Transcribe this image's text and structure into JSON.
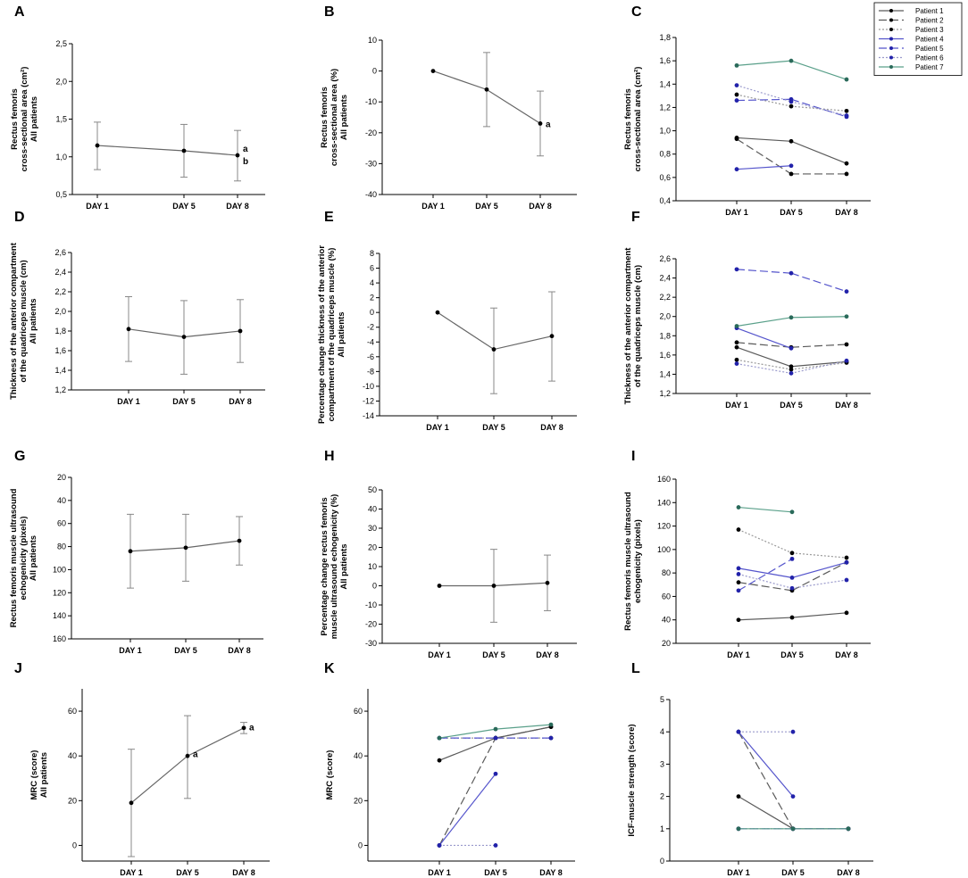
{
  "figure": {
    "categories": [
      "DAY 1",
      "DAY 5",
      "DAY 8"
    ]
  },
  "legend": {
    "entries": [
      {
        "label": "Patient 1",
        "color": "#5a5a5a",
        "dash": "solid",
        "marker": "#000000"
      },
      {
        "label": "Patient 2",
        "color": "#5a5a5a",
        "dash": "longdash",
        "marker": "#000000"
      },
      {
        "label": "Patient 3",
        "color": "#9a9a9a",
        "dash": "dotted",
        "marker": "#000000"
      },
      {
        "label": "Patient 4",
        "color": "#5555cc",
        "dash": "solid",
        "marker": "#2222aa"
      },
      {
        "label": "Patient 5",
        "color": "#5555cc",
        "dash": "longdash",
        "marker": "#2222aa"
      },
      {
        "label": "Patient 6",
        "color": "#9a9acc",
        "dash": "dotted",
        "marker": "#2222aa"
      },
      {
        "label": "Patient 7",
        "color": "#5aa08a",
        "dash": "solid",
        "marker": "#2a6a5a"
      }
    ]
  },
  "chart_data": [
    {
      "id": "A",
      "type": "line",
      "kind": "mean",
      "ylabel": [
        "Rectus femoris",
        "cross-sectional area (cm²)",
        "All patients"
      ],
      "ylim": [
        0.5,
        2.5
      ],
      "ticks": [
        "0,5",
        "1,0",
        "1,5",
        "2,0",
        "2,5"
      ],
      "tick_values": [
        0.5,
        1.0,
        1.5,
        2.0,
        2.5
      ],
      "categories": [
        "DAY 1",
        "DAY 5",
        "DAY 8"
      ],
      "mean": [
        1.15,
        1.08,
        1.02
      ],
      "err_low": [
        0.83,
        0.73,
        0.68
      ],
      "err_high": [
        1.46,
        1.43,
        1.35
      ],
      "annotations": [
        {
          "day": 2,
          "y": 1.02,
          "text": "a",
          "dy": -8
        },
        {
          "day": 2,
          "y": 1.02,
          "text": "b",
          "dy": 6
        }
      ]
    },
    {
      "id": "B",
      "type": "line",
      "kind": "mean",
      "ylabel": [
        "Rectus femoris",
        "cross-sectional area (%)",
        "All patients"
      ],
      "ylim": [
        -40,
        10
      ],
      "ticks": [
        "-40",
        "-30",
        "-20",
        "-10",
        "0",
        "10"
      ],
      "tick_values": [
        -40,
        -30,
        -20,
        -10,
        0,
        10
      ],
      "categories": [
        "DAY 1",
        "DAY 5",
        "DAY 8"
      ],
      "mean": [
        0,
        -6,
        -17
      ],
      "err_low": [
        null,
        -18,
        -27.5
      ],
      "err_high": [
        null,
        6,
        -6.5
      ],
      "annotations": [
        {
          "day": 2,
          "y": -17,
          "text": "a",
          "dy": 0
        }
      ]
    },
    {
      "id": "C",
      "type": "line",
      "kind": "patients",
      "ylabel": [
        "Rectus femoris",
        "cross-sectional area (cm²)"
      ],
      "ylim": [
        0.4,
        1.8
      ],
      "ticks": [
        "0,4",
        "0,6",
        "0,8",
        "1,0",
        "1,2",
        "1,4",
        "1,6",
        "1,8"
      ],
      "tick_values": [
        0.4,
        0.6,
        0.8,
        1.0,
        1.2,
        1.4,
        1.6,
        1.8
      ],
      "categories": [
        "DAY 1",
        "DAY 5",
        "DAY 8"
      ],
      "series": [
        {
          "name": "Patient 1",
          "values": [
            0.94,
            0.91,
            0.72
          ]
        },
        {
          "name": "Patient 2",
          "values": [
            0.93,
            0.63,
            0.63
          ]
        },
        {
          "name": "Patient 3",
          "values": [
            1.31,
            1.21,
            1.17
          ]
        },
        {
          "name": "Patient 4",
          "values": [
            0.67,
            0.7,
            null
          ]
        },
        {
          "name": "Patient 5",
          "values": [
            1.26,
            1.27,
            1.12
          ]
        },
        {
          "name": "Patient 6",
          "values": [
            1.39,
            1.25,
            1.13
          ]
        },
        {
          "name": "Patient 7",
          "values": [
            1.56,
            1.6,
            1.44
          ]
        }
      ]
    },
    {
      "id": "D",
      "type": "line",
      "kind": "mean",
      "ylabel": [
        "Thickness of the anterior compartment",
        "of the quadriceps muscle (cm)",
        "All patients"
      ],
      "ylim": [
        1.2,
        2.6
      ],
      "ticks": [
        "1,2",
        "1,4",
        "1,6",
        "1,8",
        "2,0",
        "2,2",
        "2,4",
        "2,6"
      ],
      "tick_values": [
        1.2,
        1.4,
        1.6,
        1.8,
        2.0,
        2.2,
        2.4,
        2.6
      ],
      "categories": [
        "DAY 1",
        "DAY 5",
        "DAY 8"
      ],
      "mean": [
        1.82,
        1.74,
        1.8
      ],
      "err_low": [
        1.49,
        1.36,
        1.48
      ],
      "err_high": [
        2.15,
        2.11,
        2.12
      ],
      "annotations": []
    },
    {
      "id": "E",
      "type": "line",
      "kind": "mean",
      "ylabel": [
        "Percentage change thickness of the anterior",
        "compartment of the quadriceps muscle (%)",
        "All patients"
      ],
      "ylim": [
        -14,
        8
      ],
      "ticks": [
        "-14",
        "-12",
        "-10",
        "-8",
        "-6",
        "-4",
        "-2",
        "0",
        "2",
        "4",
        "6",
        "8"
      ],
      "tick_values": [
        -14,
        -12,
        -10,
        -8,
        -6,
        -4,
        -2,
        0,
        2,
        4,
        6,
        8
      ],
      "categories": [
        "DAY 1",
        "DAY 5",
        "DAY 8"
      ],
      "mean": [
        0,
        -5,
        -3.2
      ],
      "err_low": [
        null,
        -11,
        -9.3
      ],
      "err_high": [
        null,
        0.6,
        2.8
      ],
      "annotations": []
    },
    {
      "id": "F",
      "type": "line",
      "kind": "patients",
      "ylabel": [
        "Thickness of the anterior compartment",
        "of the quadriceps muscle (cm)"
      ],
      "ylim": [
        1.2,
        2.6
      ],
      "ticks": [
        "1,2",
        "1,4",
        "1,6",
        "1,8",
        "2,0",
        "2,2",
        "2,4",
        "2,6"
      ],
      "tick_values": [
        1.2,
        1.4,
        1.6,
        1.8,
        2.0,
        2.2,
        2.4,
        2.6
      ],
      "categories": [
        "DAY 1",
        "DAY 5",
        "DAY 8"
      ],
      "series": [
        {
          "name": "Patient 1",
          "values": [
            1.68,
            1.48,
            1.53
          ]
        },
        {
          "name": "Patient 2",
          "values": [
            1.73,
            1.68,
            1.71
          ]
        },
        {
          "name": "Patient 3",
          "values": [
            1.55,
            1.45,
            1.52
          ]
        },
        {
          "name": "Patient 4",
          "values": [
            1.88,
            1.67,
            null
          ]
        },
        {
          "name": "Patient 5",
          "values": [
            2.49,
            2.45,
            2.26
          ]
        },
        {
          "name": "Patient 6",
          "values": [
            1.51,
            1.41,
            1.54
          ]
        },
        {
          "name": "Patient 7",
          "values": [
            1.9,
            1.99,
            2.0
          ]
        }
      ]
    },
    {
      "id": "G",
      "type": "line",
      "kind": "mean",
      "inverted": true,
      "ylabel": [
        "Rectus femoris muscle ultrasound",
        "echogenicity (pixels)",
        "All patients"
      ],
      "ylim": [
        20,
        160
      ],
      "ticks": [
        "20",
        "40",
        "60",
        "80",
        "100",
        "120",
        "140",
        "160"
      ],
      "tick_values": [
        20,
        40,
        60,
        80,
        100,
        120,
        140,
        160
      ],
      "categories": [
        "DAY 1",
        "DAY 5",
        "DAY 8"
      ],
      "mean": [
        84,
        81,
        75
      ],
      "err_low": [
        52,
        52,
        54
      ],
      "err_high": [
        116,
        110,
        96
      ],
      "annotations": []
    },
    {
      "id": "H",
      "type": "line",
      "kind": "mean",
      "ylabel": [
        "Percentage change rectus femoris",
        "muscle ultrasound echogenicity (%)",
        "All patients"
      ],
      "ylim": [
        -30,
        50
      ],
      "ticks": [
        "-30",
        "-20",
        "-10",
        "0",
        "10",
        "20",
        "30",
        "40",
        "50"
      ],
      "tick_values": [
        -30,
        -20,
        -10,
        0,
        10,
        20,
        30,
        40,
        50
      ],
      "categories": [
        "DAY 1",
        "DAY 5",
        "DAY 8"
      ],
      "mean": [
        0,
        0,
        1.5
      ],
      "err_low": [
        null,
        -19,
        -13
      ],
      "err_high": [
        null,
        19,
        16
      ],
      "annotations": []
    },
    {
      "id": "I",
      "type": "line",
      "kind": "patients",
      "ylabel": [
        "Rectus femoris muscle ultrasound",
        "echogenicity (pixels)"
      ],
      "ylim": [
        20,
        160
      ],
      "ticks": [
        "20",
        "40",
        "60",
        "80",
        "100",
        "120",
        "140",
        "160"
      ],
      "tick_values": [
        20,
        40,
        60,
        80,
        100,
        120,
        140,
        160
      ],
      "categories": [
        "DAY 1",
        "DAY 5",
        "DAY 8"
      ],
      "series": [
        {
          "name": "Patient 1",
          "values": [
            40,
            42,
            46
          ]
        },
        {
          "name": "Patient 2",
          "values": [
            72,
            65,
            89
          ]
        },
        {
          "name": "Patient 3",
          "values": [
            117,
            97,
            93
          ]
        },
        {
          "name": "Patient 4",
          "values": [
            84,
            76,
            89
          ]
        },
        {
          "name": "Patient 5",
          "values": [
            65,
            92,
            null
          ]
        },
        {
          "name": "Patient 6",
          "values": [
            79,
            67,
            74
          ]
        },
        {
          "name": "Patient 7",
          "values": [
            136,
            132,
            null
          ]
        }
      ]
    },
    {
      "id": "J",
      "type": "line",
      "kind": "mean",
      "ylabel": [
        "MRC (score)",
        "All patients"
      ],
      "ylim": [
        -7,
        70
      ],
      "ticks": [
        "0",
        "20",
        "40",
        "60"
      ],
      "tick_values": [
        0,
        20,
        40,
        60
      ],
      "categories": [
        "DAY 1",
        "DAY 5",
        "DAY 8"
      ],
      "mean": [
        19,
        40,
        52.5
      ],
      "err_low": [
        -5,
        21,
        50
      ],
      "err_high": [
        43,
        58,
        55
      ],
      "annotations": [
        {
          "day": 1,
          "y": 41,
          "text": "a",
          "dy": 0
        },
        {
          "day": 2,
          "y": 53,
          "text": "a",
          "dy": 0
        }
      ]
    },
    {
      "id": "K",
      "type": "line",
      "kind": "patients",
      "ylabel": [
        "MRC (score)"
      ],
      "ylim": [
        -7,
        70
      ],
      "ticks": [
        "0",
        "20",
        "40",
        "60"
      ],
      "tick_values": [
        0,
        20,
        40,
        60
      ],
      "categories": [
        "DAY 1",
        "DAY 5",
        "DAY 8"
      ],
      "series": [
        {
          "name": "Patient 1",
          "values": [
            38,
            48,
            53
          ]
        },
        {
          "name": "Patient 2",
          "values": [
            0,
            48,
            53
          ]
        },
        {
          "name": "Patient 3",
          "values": [
            48,
            48,
            48
          ]
        },
        {
          "name": "Patient 4",
          "values": [
            0,
            32,
            null
          ]
        },
        {
          "name": "Patient 5",
          "values": [
            48,
            48,
            48
          ]
        },
        {
          "name": "Patient 6",
          "values": [
            0,
            0,
            null
          ]
        },
        {
          "name": "Patient 7",
          "values": [
            48,
            52,
            54
          ]
        }
      ]
    },
    {
      "id": "L",
      "type": "line",
      "kind": "patients",
      "ylabel": [
        "ICF-muscle strength (score)"
      ],
      "ylim": [
        0,
        5
      ],
      "ticks": [
        "0",
        "1",
        "2",
        "3",
        "4",
        "5"
      ],
      "tick_values": [
        0,
        1,
        2,
        3,
        4,
        5
      ],
      "categories": [
        "DAY 1",
        "DAY 5",
        "DAY 8"
      ],
      "series": [
        {
          "name": "Patient 1",
          "values": [
            2,
            1,
            1
          ]
        },
        {
          "name": "Patient 2",
          "values": [
            4,
            1,
            1
          ]
        },
        {
          "name": "Patient 3",
          "values": [
            1,
            1,
            1
          ]
        },
        {
          "name": "Patient 4",
          "values": [
            4,
            2,
            null
          ]
        },
        {
          "name": "Patient 5",
          "values": [
            1,
            1,
            1
          ]
        },
        {
          "name": "Patient 6",
          "values": [
            4,
            4,
            null
          ]
        },
        {
          "name": "Patient 7",
          "values": [
            1,
            1,
            1
          ]
        }
      ]
    }
  ]
}
